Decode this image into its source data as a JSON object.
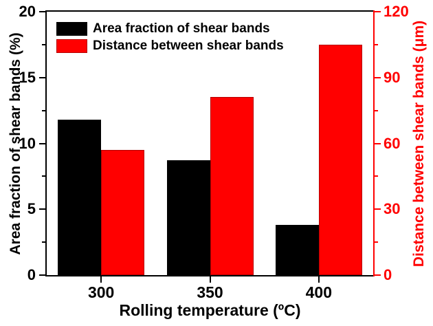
{
  "chart_data": {
    "type": "bar",
    "categories": [
      "300",
      "350",
      "400"
    ],
    "series": [
      {
        "name": "Area fraction of shear bands",
        "axis": "left",
        "color": "#000000",
        "values": [
          11.8,
          8.7,
          3.8
        ]
      },
      {
        "name": "Distance between shear bands",
        "axis": "right",
        "color": "#ff0000",
        "values": [
          57,
          81,
          105
        ]
      }
    ],
    "xlabel": "Rolling temperature (ºC)",
    "left_axis": {
      "label": "Area fraction of shear bands (%)",
      "min": 0,
      "max": 20,
      "major_ticks": [
        0,
        5,
        10,
        15,
        20
      ],
      "minor_ticks": [
        2.5,
        7.5,
        12.5,
        17.5
      ],
      "color": "#000000"
    },
    "right_axis": {
      "label": "Distance between shear bands (μm)",
      "min": 0,
      "max": 120,
      "major_ticks": [
        0,
        30,
        60,
        90,
        120
      ],
      "minor_ticks": [
        15,
        45,
        75,
        105
      ],
      "color": "#ff0000"
    },
    "legend": {
      "position": "top-left"
    },
    "grid": false,
    "background": "#ffffff"
  }
}
